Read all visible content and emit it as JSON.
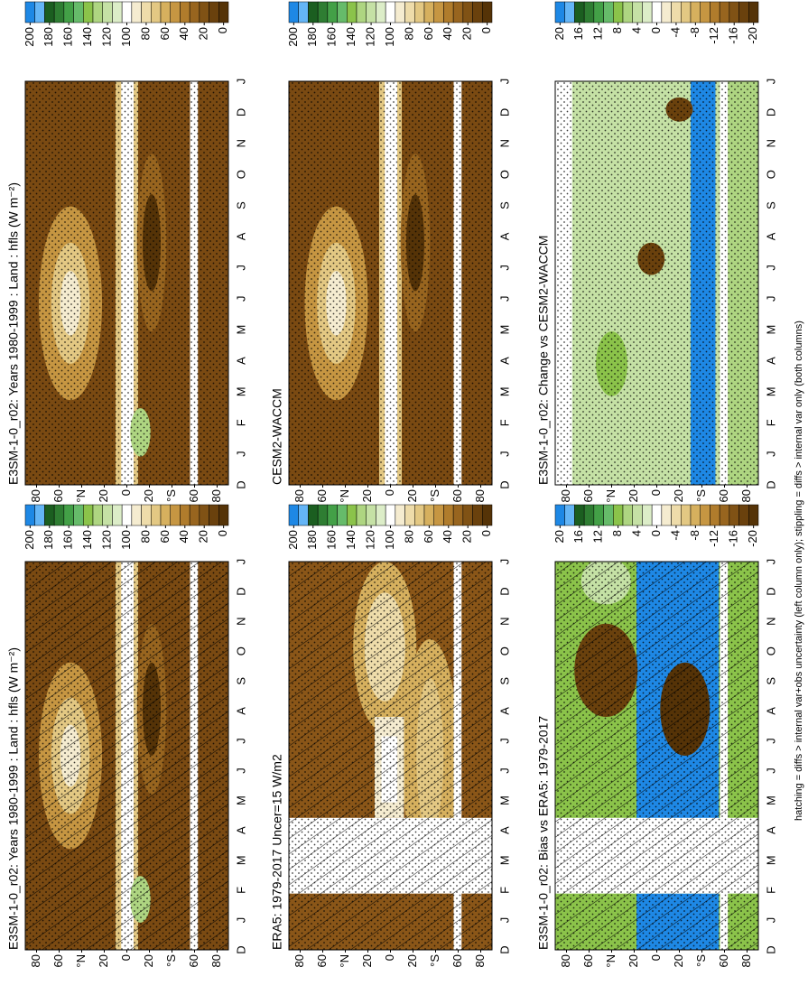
{
  "chart_data": [
    {
      "type": "contour",
      "title": "E3SM-1-0_r02: Years 1980-1999 : Land : hfls (W m⁻²)",
      "categories": [
        "D",
        "J",
        "F",
        "M",
        "A",
        "M",
        "J",
        "J",
        "A",
        "S",
        "O",
        "N",
        "D",
        "J"
      ],
      "ylim": [
        -90,
        90
      ],
      "yticks": [
        80,
        60,
        {
          "value": 40,
          "label": "°N"
        },
        20,
        0,
        {
          "value": -20,
          "label": "20"
        },
        {
          "value": -40,
          "label": "°S"
        },
        {
          "value": -60,
          "label": "60"
        },
        {
          "value": -80,
          "label": "80"
        }
      ],
      "hatching": true,
      "stippling": true,
      "colorbar": {
        "lim": [
          -5,
          205
        ],
        "ticks": [
          200,
          180,
          160,
          140,
          120,
          100,
          80,
          60,
          40,
          20,
          0
        ],
        "colors": [
          "#1e88e5",
          "#64b5f6",
          "#1b5e20",
          "#2e7d32",
          "#43a047",
          "#66bb6a",
          "#8bc34a",
          "#aed581",
          "#c5e1a5",
          "#dcedc8",
          "#ffffff",
          "#f5ecd0",
          "#eedcaa",
          "#e3c883",
          "#d6b05e",
          "#c69642",
          "#b07c2c",
          "#98651f",
          "#805215",
          "#6a410d",
          "#553307"
        ]
      }
    },
    {
      "type": "contour",
      "title": "ERA5: 1979-2017 Uncer=15 W/m2",
      "categories": [
        "D",
        "J",
        "F",
        "M",
        "A",
        "M",
        "J",
        "J",
        "A",
        "S",
        "O",
        "N",
        "D",
        "J"
      ],
      "ylim": [
        -90,
        90
      ],
      "yticks": [
        80,
        60,
        {
          "value": 40,
          "label": "°N"
        },
        20,
        0,
        {
          "value": -20,
          "label": "20"
        },
        {
          "value": -40,
          "label": "°S"
        },
        {
          "value": -60,
          "label": "60"
        },
        {
          "value": -80,
          "label": "80"
        }
      ],
      "hatching": true,
      "stippling": true,
      "colorbar": {
        "lim": [
          -5,
          205
        ],
        "ticks": [
          200,
          180,
          160,
          140,
          120,
          100,
          80,
          60,
          40,
          20,
          0
        ],
        "colors": [
          "#1e88e5",
          "#64b5f6",
          "#1b5e20",
          "#2e7d32",
          "#43a047",
          "#66bb6a",
          "#8bc34a",
          "#aed581",
          "#c5e1a5",
          "#dcedc8",
          "#ffffff",
          "#f5ecd0",
          "#eedcaa",
          "#e3c883",
          "#d6b05e",
          "#c69642",
          "#b07c2c",
          "#98651f",
          "#805215",
          "#6a410d",
          "#553307"
        ]
      }
    },
    {
      "type": "contour",
      "title": "E3SM-1-0_r02: Bias vs ERA5: 1979-2017",
      "categories": [
        "D",
        "J",
        "F",
        "M",
        "A",
        "M",
        "J",
        "J",
        "A",
        "S",
        "O",
        "N",
        "D",
        "J"
      ],
      "ylim": [
        -90,
        90
      ],
      "yticks": [
        80,
        60,
        {
          "value": 40,
          "label": "°N"
        },
        20,
        0,
        {
          "value": -20,
          "label": "20"
        },
        {
          "value": -40,
          "label": "°S"
        },
        {
          "value": -60,
          "label": "60"
        },
        {
          "value": -80,
          "label": "80"
        }
      ],
      "hatching": true,
      "stippling": true,
      "colorbar": {
        "lim": [
          -21,
          21
        ],
        "ticks": [
          20,
          16,
          12,
          8,
          4,
          0,
          -4,
          -8,
          -12,
          -16,
          -20
        ],
        "colors": [
          "#1e88e5",
          "#64b5f6",
          "#1b5e20",
          "#2e7d32",
          "#43a047",
          "#66bb6a",
          "#8bc34a",
          "#aed581",
          "#c5e1a5",
          "#dcedc8",
          "#ffffff",
          "#f5ecd0",
          "#eedcaa",
          "#e3c883",
          "#d6b05e",
          "#c69642",
          "#b07c2c",
          "#98651f",
          "#805215",
          "#6a410d",
          "#553307"
        ]
      }
    },
    {
      "type": "contour",
      "title": "E3SM-1-0_r02: Years 1980-1999 : Land : hfls (W m⁻²)",
      "categories": [
        "D",
        "J",
        "F",
        "M",
        "A",
        "M",
        "J",
        "J",
        "A",
        "S",
        "O",
        "N",
        "D",
        "J"
      ],
      "ylim": [
        -90,
        90
      ],
      "yticks": [
        80,
        60,
        {
          "value": 40,
          "label": "°N"
        },
        20,
        0,
        {
          "value": -20,
          "label": "20"
        },
        {
          "value": -40,
          "label": "°S"
        },
        {
          "value": -60,
          "label": "60"
        },
        {
          "value": -80,
          "label": "80"
        }
      ],
      "hatching": false,
      "stippling": true,
      "colorbar": {
        "lim": [
          -5,
          205
        ],
        "ticks": [
          200,
          180,
          160,
          140,
          120,
          100,
          80,
          60,
          40,
          20,
          0
        ],
        "colors": [
          "#1e88e5",
          "#64b5f6",
          "#1b5e20",
          "#2e7d32",
          "#43a047",
          "#66bb6a",
          "#8bc34a",
          "#aed581",
          "#c5e1a5",
          "#dcedc8",
          "#ffffff",
          "#f5ecd0",
          "#eedcaa",
          "#e3c883",
          "#d6b05e",
          "#c69642",
          "#b07c2c",
          "#98651f",
          "#805215",
          "#6a410d",
          "#553307"
        ]
      }
    },
    {
      "type": "contour",
      "title": "CESM2-WACCM",
      "categories": [
        "D",
        "J",
        "F",
        "M",
        "A",
        "M",
        "J",
        "J",
        "A",
        "S",
        "O",
        "N",
        "D",
        "J"
      ],
      "ylim": [
        -90,
        90
      ],
      "yticks": [
        80,
        60,
        {
          "value": 40,
          "label": "°N"
        },
        20,
        0,
        {
          "value": -20,
          "label": "20"
        },
        {
          "value": -40,
          "label": "°S"
        },
        {
          "value": -60,
          "label": "60"
        },
        {
          "value": -80,
          "label": "80"
        }
      ],
      "hatching": false,
      "stippling": true,
      "colorbar": {
        "lim": [
          -5,
          205
        ],
        "ticks": [
          200,
          180,
          160,
          140,
          120,
          100,
          80,
          60,
          40,
          20,
          0
        ],
        "colors": [
          "#1e88e5",
          "#64b5f6",
          "#1b5e20",
          "#2e7d32",
          "#43a047",
          "#66bb6a",
          "#8bc34a",
          "#aed581",
          "#c5e1a5",
          "#dcedc8",
          "#ffffff",
          "#f5ecd0",
          "#eedcaa",
          "#e3c883",
          "#d6b05e",
          "#c69642",
          "#b07c2c",
          "#98651f",
          "#805215",
          "#6a410d",
          "#553307"
        ]
      }
    },
    {
      "type": "contour",
      "title": "E3SM-1-0_r02: Change vs CESM2-WACCM",
      "categories": [
        "D",
        "J",
        "F",
        "M",
        "A",
        "M",
        "J",
        "J",
        "A",
        "S",
        "O",
        "N",
        "D",
        "J"
      ],
      "ylim": [
        -90,
        90
      ],
      "yticks": [
        80,
        60,
        {
          "value": 40,
          "label": "°N"
        },
        20,
        0,
        {
          "value": -20,
          "label": "20"
        },
        {
          "value": -40,
          "label": "°S"
        },
        {
          "value": -60,
          "label": "60"
        },
        {
          "value": -80,
          "label": "80"
        }
      ],
      "hatching": false,
      "stippling": true,
      "colorbar": {
        "lim": [
          -21,
          21
        ],
        "ticks": [
          20,
          16,
          12,
          8,
          4,
          0,
          -4,
          -8,
          -12,
          -16,
          -20
        ],
        "colors": [
          "#1e88e5",
          "#64b5f6",
          "#1b5e20",
          "#2e7d32",
          "#43a047",
          "#66bb6a",
          "#8bc34a",
          "#aed581",
          "#c5e1a5",
          "#dcedc8",
          "#ffffff",
          "#f5ecd0",
          "#eedcaa",
          "#e3c883",
          "#d6b05e",
          "#c69642",
          "#b07c2c",
          "#98651f",
          "#805215",
          "#6a410d",
          "#553307"
        ]
      }
    }
  ],
  "caption": "hatching = diffs > internal var+obs uncertainty (left column only); stippling = diffs > internal var only (both columns)"
}
